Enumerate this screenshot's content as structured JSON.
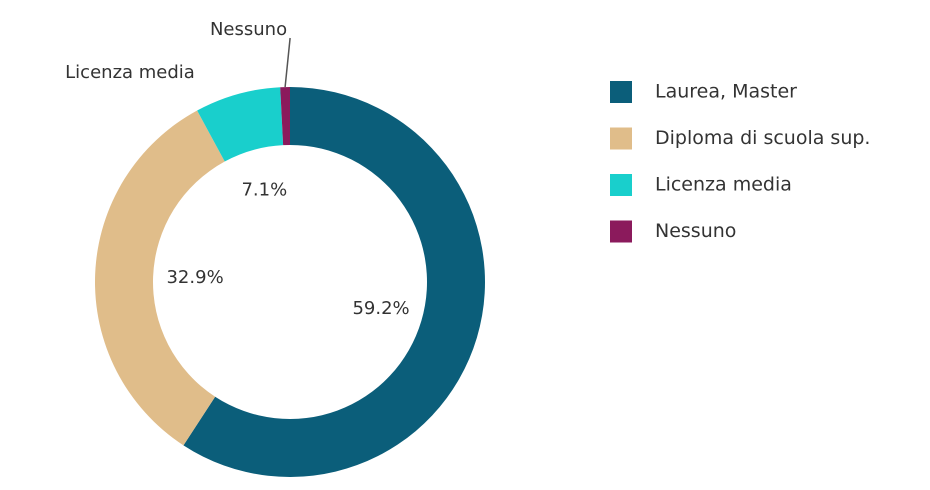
{
  "chart_data": {
    "type": "donut",
    "categories": [
      "Laurea, Master",
      "Diploma di scuola sup.",
      "Licenza media",
      "Nessuno"
    ],
    "values": [
      59.2,
      32.9,
      7.1,
      0.8
    ],
    "value_labels": [
      "59.2%",
      "32.9%",
      "7.1%",
      null
    ],
    "colors": [
      "#0b5e7a",
      "#e0bd8a",
      "#19cfcc",
      "#8b1a5c"
    ],
    "outside_labels": [
      2,
      3
    ],
    "legend": "right"
  }
}
